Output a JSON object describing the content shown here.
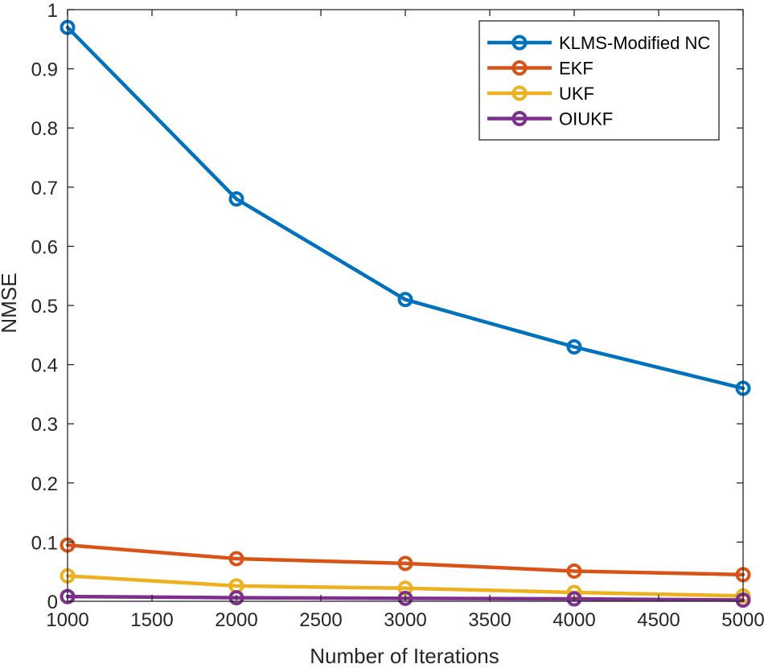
{
  "chart_data": {
    "type": "line",
    "title": "",
    "xlabel": "Number of Iterations",
    "ylabel": "NMSE",
    "xlim": [
      1000,
      5000
    ],
    "ylim": [
      0,
      1
    ],
    "xticks": [
      1000,
      1500,
      2000,
      2500,
      3000,
      3500,
      4000,
      4500,
      5000
    ],
    "xtick_labels": [
      "1000",
      "1500",
      "2000",
      "2500",
      "3000",
      "3500",
      "4000",
      "4500",
      "5000"
    ],
    "yticks": [
      0,
      0.1,
      0.2,
      0.3,
      0.4,
      0.5,
      0.6,
      0.7,
      0.8,
      0.9,
      1
    ],
    "ytick_labels": [
      "0",
      "0.1",
      "0.2",
      "0.3",
      "0.4",
      "0.5",
      "0.6",
      "0.7",
      "0.8",
      "0.9",
      "1"
    ],
    "grid": false,
    "legend_position": "top-right",
    "marker": "circle",
    "x": [
      1000,
      2000,
      3000,
      4000,
      5000
    ],
    "series": [
      {
        "name": "KLMS-Modified NC",
        "color": "#0072BD",
        "values": [
          0.97,
          0.68,
          0.51,
          0.43,
          0.36
        ]
      },
      {
        "name": "EKF",
        "color": "#D95319",
        "values": [
          0.095,
          0.072,
          0.064,
          0.051,
          0.045
        ]
      },
      {
        "name": "UKF",
        "color": "#EDB120",
        "values": [
          0.043,
          0.026,
          0.022,
          0.015,
          0.009
        ]
      },
      {
        "name": "OIUKF",
        "color": "#7E2F8E",
        "values": [
          0.008,
          0.006,
          0.005,
          0.004,
          0.002
        ]
      }
    ]
  }
}
